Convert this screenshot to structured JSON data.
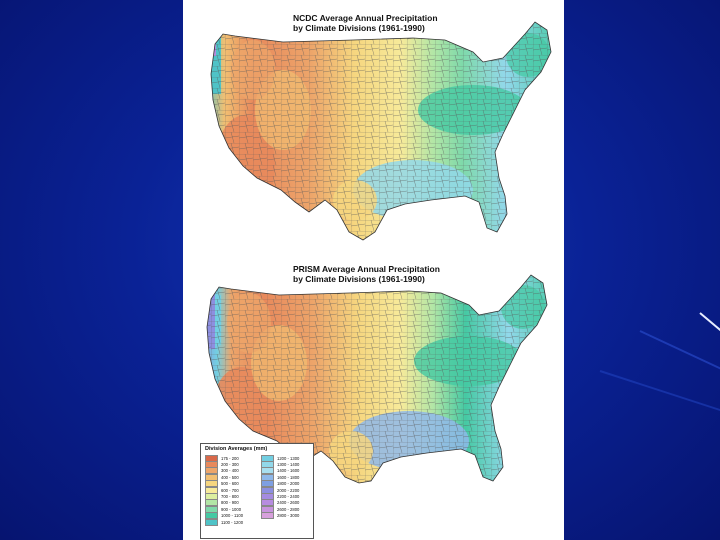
{
  "maps": [
    {
      "title_line1": "NCDC Average Annual Precipitation",
      "title_line2": "by Climate Divisions (1961-1990)"
    },
    {
      "title_line1": "PRISM Average Annual Precipitation",
      "title_line2": "by Climate Divisions (1961-1990)"
    }
  ],
  "legend": {
    "title": "Division Averages (mm)",
    "items": [
      {
        "label": "175 - 200",
        "color": "#d9694a"
      },
      {
        "label": "200 - 300",
        "color": "#e8895c"
      },
      {
        "label": "300 - 400",
        "color": "#eda56a"
      },
      {
        "label": "400 - 500",
        "color": "#f2bf72"
      },
      {
        "label": "500 - 600",
        "color": "#f6d67f"
      },
      {
        "label": "600 - 700",
        "color": "#f7ea9a"
      },
      {
        "label": "700 - 800",
        "color": "#dcefa0"
      },
      {
        "label": "800 - 900",
        "color": "#b2e6a6"
      },
      {
        "label": "900 - 1000",
        "color": "#7fd9aa"
      },
      {
        "label": "1000 - 1100",
        "color": "#45c9a3"
      },
      {
        "label": "1100 - 1200",
        "color": "#4fc3c7"
      },
      {
        "label": "1200 - 1300",
        "color": "#72cfe2"
      },
      {
        "label": "1300 - 1400",
        "color": "#92d8ea"
      },
      {
        "label": "1400 - 1600",
        "color": "#a8dff0"
      },
      {
        "label": "1600 - 1800",
        "color": "#8fb8ea"
      },
      {
        "label": "1800 - 2000",
        "color": "#7e9fe2"
      },
      {
        "label": "2000 - 2200",
        "color": "#8d8fe0"
      },
      {
        "label": "2200 - 2400",
        "color": "#a48be0"
      },
      {
        "label": "2400 - 2600",
        "color": "#b78ce0"
      },
      {
        "label": "2600 - 2800",
        "color": "#c894de"
      },
      {
        "label": "2800 - 3000",
        "color": "#d7a0dc"
      }
    ]
  }
}
